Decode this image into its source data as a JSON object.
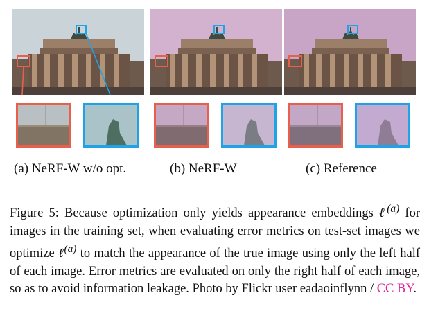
{
  "figure": {
    "panels": [
      {
        "id": "a",
        "label": "(a) NeRF-W w/o opt.",
        "sky_tint": "#c9d3d8",
        "left_crop_tint": "#8d8a80",
        "right_crop_tint": "#a9c3c9"
      },
      {
        "id": "b",
        "label": "(b) NeRF-W",
        "sky_tint": "#d2b2cf",
        "left_crop_tint": "#8c7d85",
        "right_crop_tint": "#c7b6d0"
      },
      {
        "id": "c",
        "label": "(c) Reference",
        "sky_tint": "#c8a5c7",
        "left_crop_tint": "#8f8a95",
        "right_crop_tint": "#c2aad0"
      }
    ],
    "highlight_colors": {
      "left_crop": "#e8604c",
      "right_crop": "#1ea3e6"
    },
    "caption": {
      "prefix": "Figure 5: Because optimization only yields appearance embeddings",
      "symbol": "ℓ",
      "superscript": "(a)",
      "line2_after": " for images in the training set, when evaluating error metrics on test-set images we optimize ",
      "line3_after": " to match the appearance of the true image using only the left half of each image. Error metrics are evaluated on only the right half of each image, so as to avoid information leakage. Photo by Flickr user eadaoinflynn / ",
      "license": "CC BY",
      "end": "."
    }
  }
}
